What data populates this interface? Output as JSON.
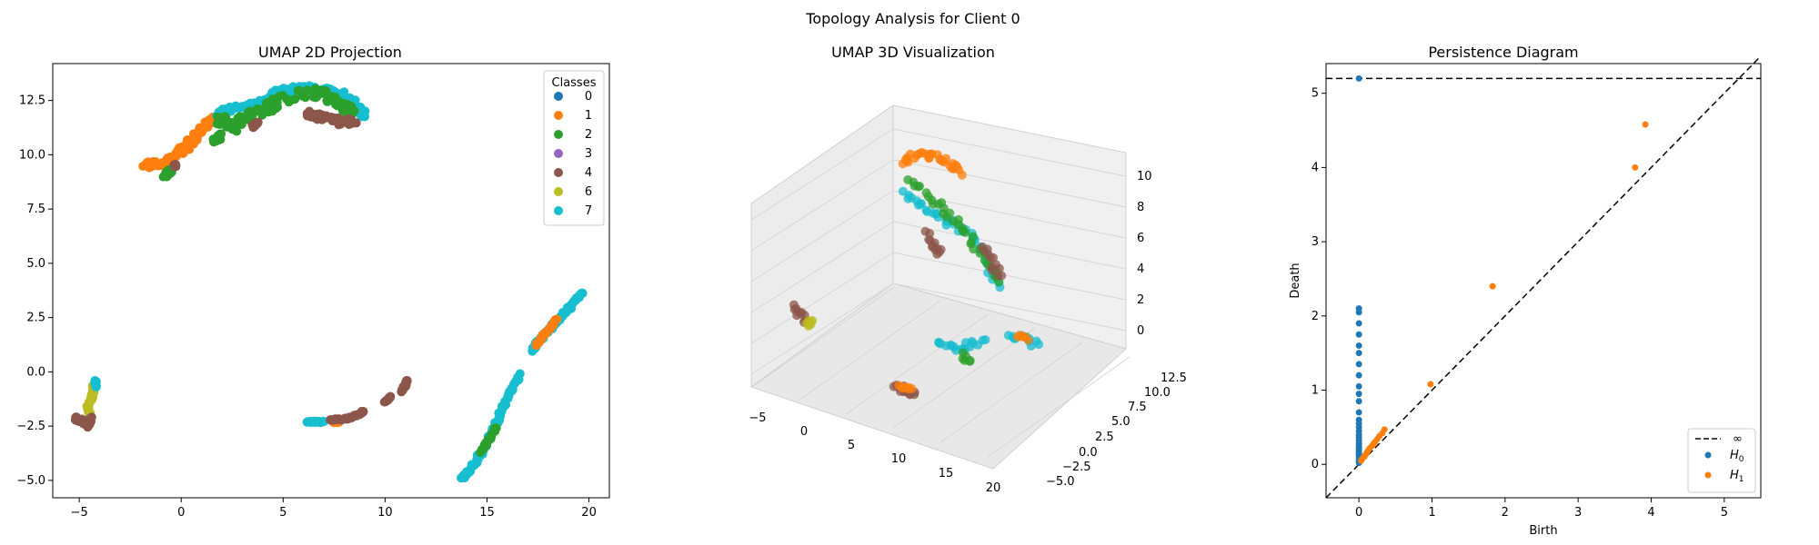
{
  "figure": {
    "suptitle": "Topology Analysis for Client 0"
  },
  "class_colors": {
    "0": "#1f77b4",
    "1": "#ff7f0e",
    "2": "#2ca02c",
    "3": "#9467bd",
    "4": "#8c564b",
    "6": "#bcbd22",
    "7": "#17becf"
  },
  "chart_data": [
    {
      "type": "scatter",
      "title": "UMAP 2D Projection",
      "xlabel": "",
      "ylabel": "",
      "xlim": [
        -6.3,
        21.0
      ],
      "ylim": [
        -5.8,
        14.2
      ],
      "xticks": [
        -5,
        0,
        5,
        10,
        15,
        20
      ],
      "yticks": [
        -5.0,
        -2.5,
        0.0,
        2.5,
        5.0,
        7.5,
        10.0,
        12.5
      ],
      "ytick_labels": [
        "−5.0",
        "−2.5",
        "0.0",
        "2.5",
        "5.0",
        "7.5",
        "10.0",
        "12.5"
      ],
      "xtick_labels": [
        "−5",
        "0",
        "5",
        "10",
        "15",
        "20"
      ],
      "grid": false,
      "legend": {
        "title": "Classes",
        "placement": "top-right",
        "entries": [
          "0",
          "1",
          "2",
          "3",
          "4",
          "6",
          "7"
        ]
      },
      "clusters": [
        {
          "label": "1",
          "path": [
            [
              -1.8,
              9.5
            ],
            [
              -1.0,
              9.6
            ],
            [
              -0.3,
              9.9
            ],
            [
              0.3,
              10.4
            ],
            [
              0.8,
              10.9
            ],
            [
              1.3,
              11.4
            ],
            [
              1.8,
              11.8
            ]
          ],
          "spread": 0.15
        },
        {
          "label": "2",
          "path": [
            [
              -0.8,
              9.0
            ],
            [
              -0.5,
              9.3
            ]
          ],
          "spread": 0.1
        },
        {
          "label": "4",
          "path": [
            [
              -0.3,
              9.5
            ]
          ],
          "spread": 0.05
        },
        {
          "label": "7",
          "path": [
            [
              1.8,
              11.9
            ],
            [
              2.8,
              12.2
            ],
            [
              3.8,
              12.3
            ],
            [
              4.6,
              12.8
            ],
            [
              5.3,
              13.0
            ],
            [
              6.2,
              13.1
            ],
            [
              7.0,
              13.0
            ],
            [
              7.8,
              12.8
            ],
            [
              8.5,
              12.3
            ],
            [
              9.0,
              11.8
            ]
          ],
          "spread": 0.15
        },
        {
          "label": "2",
          "path": [
            [
              1.8,
              11.6
            ],
            [
              2.5,
              11.3
            ],
            [
              3.2,
              11.8
            ],
            [
              4.0,
              12.0
            ],
            [
              4.8,
              12.5
            ],
            [
              6.5,
              12.9
            ],
            [
              7.2,
              12.7
            ],
            [
              7.9,
              12.3
            ],
            [
              8.4,
              11.8
            ]
          ],
          "spread": 0.25
        },
        {
          "label": "2",
          "path": [
            [
              1.6,
              10.6
            ],
            [
              2.0,
              10.9
            ]
          ],
          "spread": 0.1
        },
        {
          "label": "4",
          "path": [
            [
              3.5,
              11.3
            ],
            [
              3.8,
              11.5
            ]
          ],
          "spread": 0.05
        },
        {
          "label": "4",
          "path": [
            [
              6.2,
              11.9
            ],
            [
              7.0,
              11.7
            ],
            [
              7.8,
              11.5
            ],
            [
              8.5,
              11.5
            ]
          ],
          "spread": 0.15
        },
        {
          "label": "6",
          "path": [
            [
              -4.3,
              -0.6
            ],
            [
              -4.3,
              -0.9
            ],
            [
              -4.4,
              -1.2
            ],
            [
              -4.6,
              -1.6
            ],
            [
              -4.5,
              -1.9
            ]
          ],
          "spread": 0.05
        },
        {
          "label": "7",
          "path": [
            [
              -4.2,
              -0.4
            ],
            [
              -4.2,
              -0.7
            ]
          ],
          "spread": 0.04
        },
        {
          "label": "4",
          "path": [
            [
              -5.2,
              -2.1
            ],
            [
              -4.8,
              -2.3
            ],
            [
              -4.6,
              -2.5
            ],
            [
              -4.4,
              -2.1
            ]
          ],
          "spread": 0.08
        },
        {
          "label": "7",
          "path": [
            [
              6.2,
              -2.3
            ],
            [
              6.6,
              -2.3
            ],
            [
              7.0,
              -2.3
            ]
          ],
          "spread": 0.03
        },
        {
          "label": "1",
          "path": [
            [
              7.4,
              -2.3
            ],
            [
              7.8,
              -2.3
            ]
          ],
          "spread": 0.03
        },
        {
          "label": "4",
          "path": [
            [
              7.3,
              -2.2
            ],
            [
              8.0,
              -2.2
            ],
            [
              8.6,
              -2.0
            ],
            [
              9.0,
              -1.8
            ]
          ],
          "spread": 0.04
        },
        {
          "label": "4",
          "path": [
            [
              10.0,
              -1.4
            ],
            [
              10.3,
              -1.1
            ]
          ],
          "spread": 0.04
        },
        {
          "label": "4",
          "path": [
            [
              10.8,
              -0.9
            ],
            [
              11.0,
              -0.6
            ],
            [
              11.1,
              -0.4
            ]
          ],
          "spread": 0.04
        },
        {
          "label": "7",
          "path": [
            [
              13.8,
              -4.9
            ],
            [
              14.2,
              -4.5
            ],
            [
              14.9,
              -3.4
            ],
            [
              15.3,
              -2.7
            ],
            [
              15.7,
              -1.8
            ],
            [
              16.1,
              -1.0
            ],
            [
              16.6,
              -0.1
            ]
          ],
          "spread": 0.08
        },
        {
          "label": "2",
          "path": [
            [
              14.7,
              -3.7
            ],
            [
              15.2,
              -3.0
            ],
            [
              15.5,
              -2.5
            ]
          ],
          "spread": 0.05
        },
        {
          "label": "7",
          "path": [
            [
              17.2,
              1.0
            ],
            [
              17.6,
              1.5
            ],
            [
              18.1,
              2.0
            ],
            [
              18.6,
              2.5
            ],
            [
              19.1,
              3.0
            ],
            [
              19.7,
              3.7
            ]
          ],
          "spread": 0.07
        },
        {
          "label": "1",
          "path": [
            [
              17.4,
              1.2
            ],
            [
              17.7,
              1.6
            ],
            [
              18.5,
              2.5
            ]
          ],
          "spread": 0.04
        }
      ]
    },
    {
      "type": "scatter",
      "title": "UMAP 3D Visualization",
      "x_ticks": [
        "−5",
        "0",
        "5",
        "10",
        "15",
        "20"
      ],
      "y_ticks": [
        "−5.0",
        "−2.5",
        "0.0",
        "2.5",
        "5.0",
        "7.5",
        "10.0",
        "12.5"
      ],
      "z_ticks": [
        "0",
        "2",
        "4",
        "6",
        "8",
        "10"
      ]
    },
    {
      "type": "scatter",
      "title": "Persistence Diagram",
      "xlabel": "Birth",
      "ylabel": "Death",
      "xlim": [
        -0.45,
        5.5
      ],
      "ylim": [
        -0.45,
        5.4
      ],
      "xticks": [
        0,
        1,
        2,
        3,
        4,
        5
      ],
      "yticks": [
        0,
        1,
        2,
        3,
        4,
        5
      ],
      "grid": false,
      "infinity_level": 5.2,
      "legend": {
        "placement": "bottom-right",
        "entries": [
          "∞",
          "H0",
          "H1"
        ]
      },
      "series": [
        {
          "name": "H0",
          "points": [
            [
              0,
              5.2
            ],
            [
              0,
              2.1
            ],
            [
              0,
              2.05
            ],
            [
              0,
              1.9
            ],
            [
              0,
              1.75
            ],
            [
              0,
              1.6
            ],
            [
              0,
              1.5
            ],
            [
              0,
              1.35
            ],
            [
              0,
              1.2
            ],
            [
              0,
              1.05
            ],
            [
              0,
              0.95
            ],
            [
              0,
              0.85
            ],
            [
              0,
              0.7
            ],
            [
              0,
              0.6
            ],
            [
              0,
              0.55
            ],
            [
              0,
              0.5
            ],
            [
              0,
              0.45
            ],
            [
              0,
              0.4
            ],
            [
              0,
              0.36
            ],
            [
              0,
              0.32
            ],
            [
              0,
              0.28
            ],
            [
              0,
              0.25
            ],
            [
              0,
              0.22
            ],
            [
              0,
              0.19
            ],
            [
              0,
              0.16
            ],
            [
              0,
              0.13
            ],
            [
              0,
              0.1
            ],
            [
              0,
              0.07
            ],
            [
              0,
              0.04
            ],
            [
              0,
              0.02
            ]
          ]
        },
        {
          "name": "H1",
          "points": [
            [
              3.92,
              4.58
            ],
            [
              3.78,
              4.0
            ],
            [
              1.83,
              2.4
            ],
            [
              0.98,
              1.08
            ],
            [
              0.35,
              0.47
            ],
            [
              0.32,
              0.42
            ],
            [
              0.28,
              0.38
            ],
            [
              0.25,
              0.34
            ],
            [
              0.22,
              0.3
            ],
            [
              0.2,
              0.28
            ],
            [
              0.18,
              0.25
            ],
            [
              0.15,
              0.22
            ],
            [
              0.13,
              0.19
            ],
            [
              0.11,
              0.16
            ],
            [
              0.09,
              0.13
            ],
            [
              0.07,
              0.1
            ],
            [
              0.05,
              0.08
            ],
            [
              0.03,
              0.05
            ]
          ]
        }
      ]
    }
  ]
}
